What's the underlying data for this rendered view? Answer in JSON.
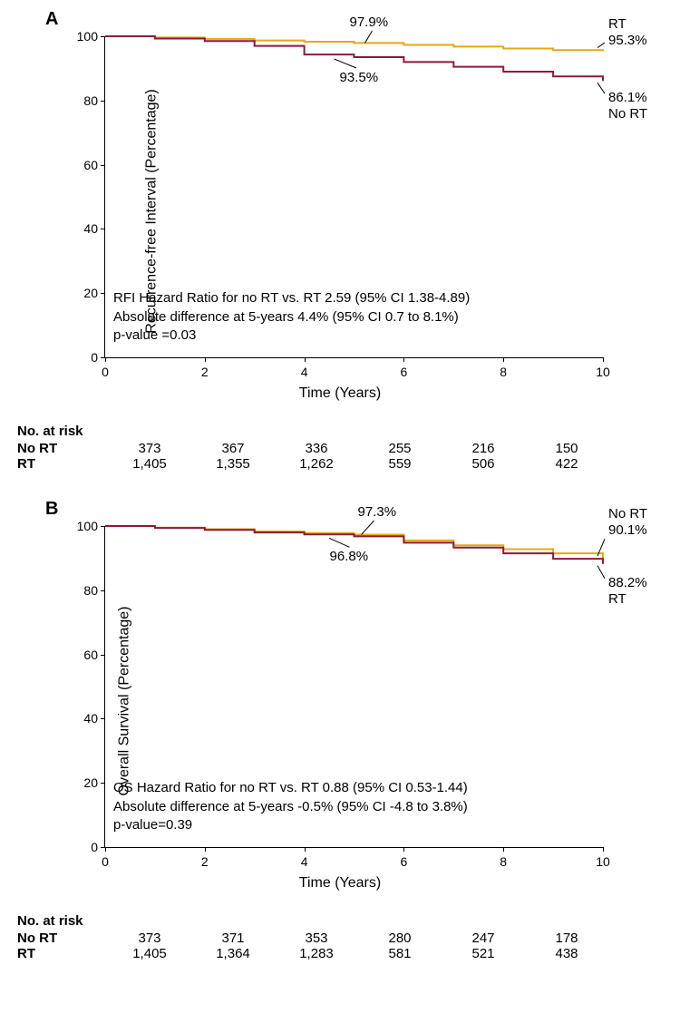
{
  "panelA": {
    "letter": "A",
    "type": "kaplan-meier",
    "ylabel": "Recurrence-free Interval (Percentage)",
    "xlabel": "Time (Years)",
    "xlim": [
      0,
      10
    ],
    "ylim": [
      0,
      100
    ],
    "xticks": [
      0,
      2,
      4,
      6,
      8,
      10
    ],
    "yticks": [
      0,
      20,
      40,
      60,
      80,
      100
    ],
    "background_color": "#ffffff",
    "axis_color": "#000000",
    "series": {
      "RT": {
        "color": "#e6a817",
        "line_width": 2,
        "points": [
          [
            0,
            100
          ],
          [
            1,
            99.6
          ],
          [
            2,
            99.2
          ],
          [
            3,
            98.7
          ],
          [
            4,
            98.3
          ],
          [
            5,
            97.9
          ],
          [
            6,
            97.3
          ],
          [
            7,
            96.8
          ],
          [
            8,
            96.2
          ],
          [
            9,
            95.7
          ],
          [
            10,
            95.3
          ]
        ]
      },
      "NoRT": {
        "color": "#8b1a3a",
        "line_width": 2,
        "points": [
          [
            0,
            100
          ],
          [
            1,
            99.3
          ],
          [
            2,
            98.5
          ],
          [
            3,
            97.0
          ],
          [
            4,
            94.3
          ],
          [
            5,
            93.5
          ],
          [
            6,
            92.0
          ],
          [
            7,
            90.5
          ],
          [
            8,
            89.0
          ],
          [
            9,
            87.5
          ],
          [
            10,
            86.1
          ]
        ]
      }
    },
    "annotations": {
      "rt_mid": "97.9%",
      "nort_mid": "93.5%",
      "rt_end_top": "RT",
      "rt_end_val": "95.3%",
      "nort_end_val": "86.1%",
      "nort_end_bot": "No RT"
    },
    "stats": {
      "line1": "RFI Hazard Ratio for no RT vs. RT 2.59 (95% CI 1.38-4.89)",
      "line2": "Absolute difference at 5-years 4.4% (95% CI 0.7 to 8.1%)",
      "line3": "p-value =0.03"
    },
    "risk": {
      "title": "No. at risk",
      "rows": [
        {
          "label": "No RT",
          "bold": true,
          "vals": [
            "373",
            "367",
            "336",
            "255",
            "216",
            "150"
          ]
        },
        {
          "label": "RT",
          "bold": true,
          "vals": [
            "1,405",
            "1,355",
            "1,262",
            "559",
            "506",
            "422"
          ]
        }
      ]
    }
  },
  "panelB": {
    "letter": "B",
    "type": "kaplan-meier",
    "ylabel": "Overall Survival (Percentage)",
    "xlabel": "Time (Years)",
    "xlim": [
      0,
      10
    ],
    "ylim": [
      0,
      100
    ],
    "xticks": [
      0,
      2,
      4,
      6,
      8,
      10
    ],
    "yticks": [
      0,
      20,
      40,
      60,
      80,
      100
    ],
    "background_color": "#ffffff",
    "axis_color": "#000000",
    "series": {
      "NoRT": {
        "color": "#e6a817",
        "line_width": 2,
        "points": [
          [
            0,
            100
          ],
          [
            1,
            99.5
          ],
          [
            2,
            99.0
          ],
          [
            3,
            98.3
          ],
          [
            4,
            97.8
          ],
          [
            5,
            97.3
          ],
          [
            6,
            95.5
          ],
          [
            7,
            94.0
          ],
          [
            8,
            92.8
          ],
          [
            9,
            91.5
          ],
          [
            10,
            90.1
          ]
        ]
      },
      "RT": {
        "color": "#8b1a3a",
        "line_width": 2,
        "points": [
          [
            0,
            100
          ],
          [
            1,
            99.4
          ],
          [
            2,
            98.8
          ],
          [
            3,
            98.0
          ],
          [
            4,
            97.4
          ],
          [
            5,
            96.8
          ],
          [
            6,
            94.8
          ],
          [
            7,
            93.3
          ],
          [
            8,
            91.5
          ],
          [
            9,
            89.8
          ],
          [
            10,
            88.2
          ]
        ]
      }
    },
    "annotations": {
      "nort_mid": "97.3%",
      "rt_mid": "96.8%",
      "nort_end_top": "No RT",
      "nort_end_val": "90.1%",
      "rt_end_val": "88.2%",
      "rt_end_bot": "RT"
    },
    "stats": {
      "line1": "OS Hazard Ratio for no RT vs. RT 0.88 (95% CI 0.53-1.44)",
      "line2": "Absolute difference at 5-years -0.5% (95% CI -4.8 to 3.8%)",
      "line3": "p-value=0.39"
    },
    "risk": {
      "title": "No. at risk",
      "rows": [
        {
          "label": "No RT",
          "bold": true,
          "vals": [
            "373",
            "371",
            "353",
            "280",
            "247",
            "178"
          ]
        },
        {
          "label": "RT",
          "bold": true,
          "vals": [
            "1,405",
            "1,364",
            "1,283",
            "581",
            "521",
            "438"
          ]
        }
      ]
    }
  }
}
